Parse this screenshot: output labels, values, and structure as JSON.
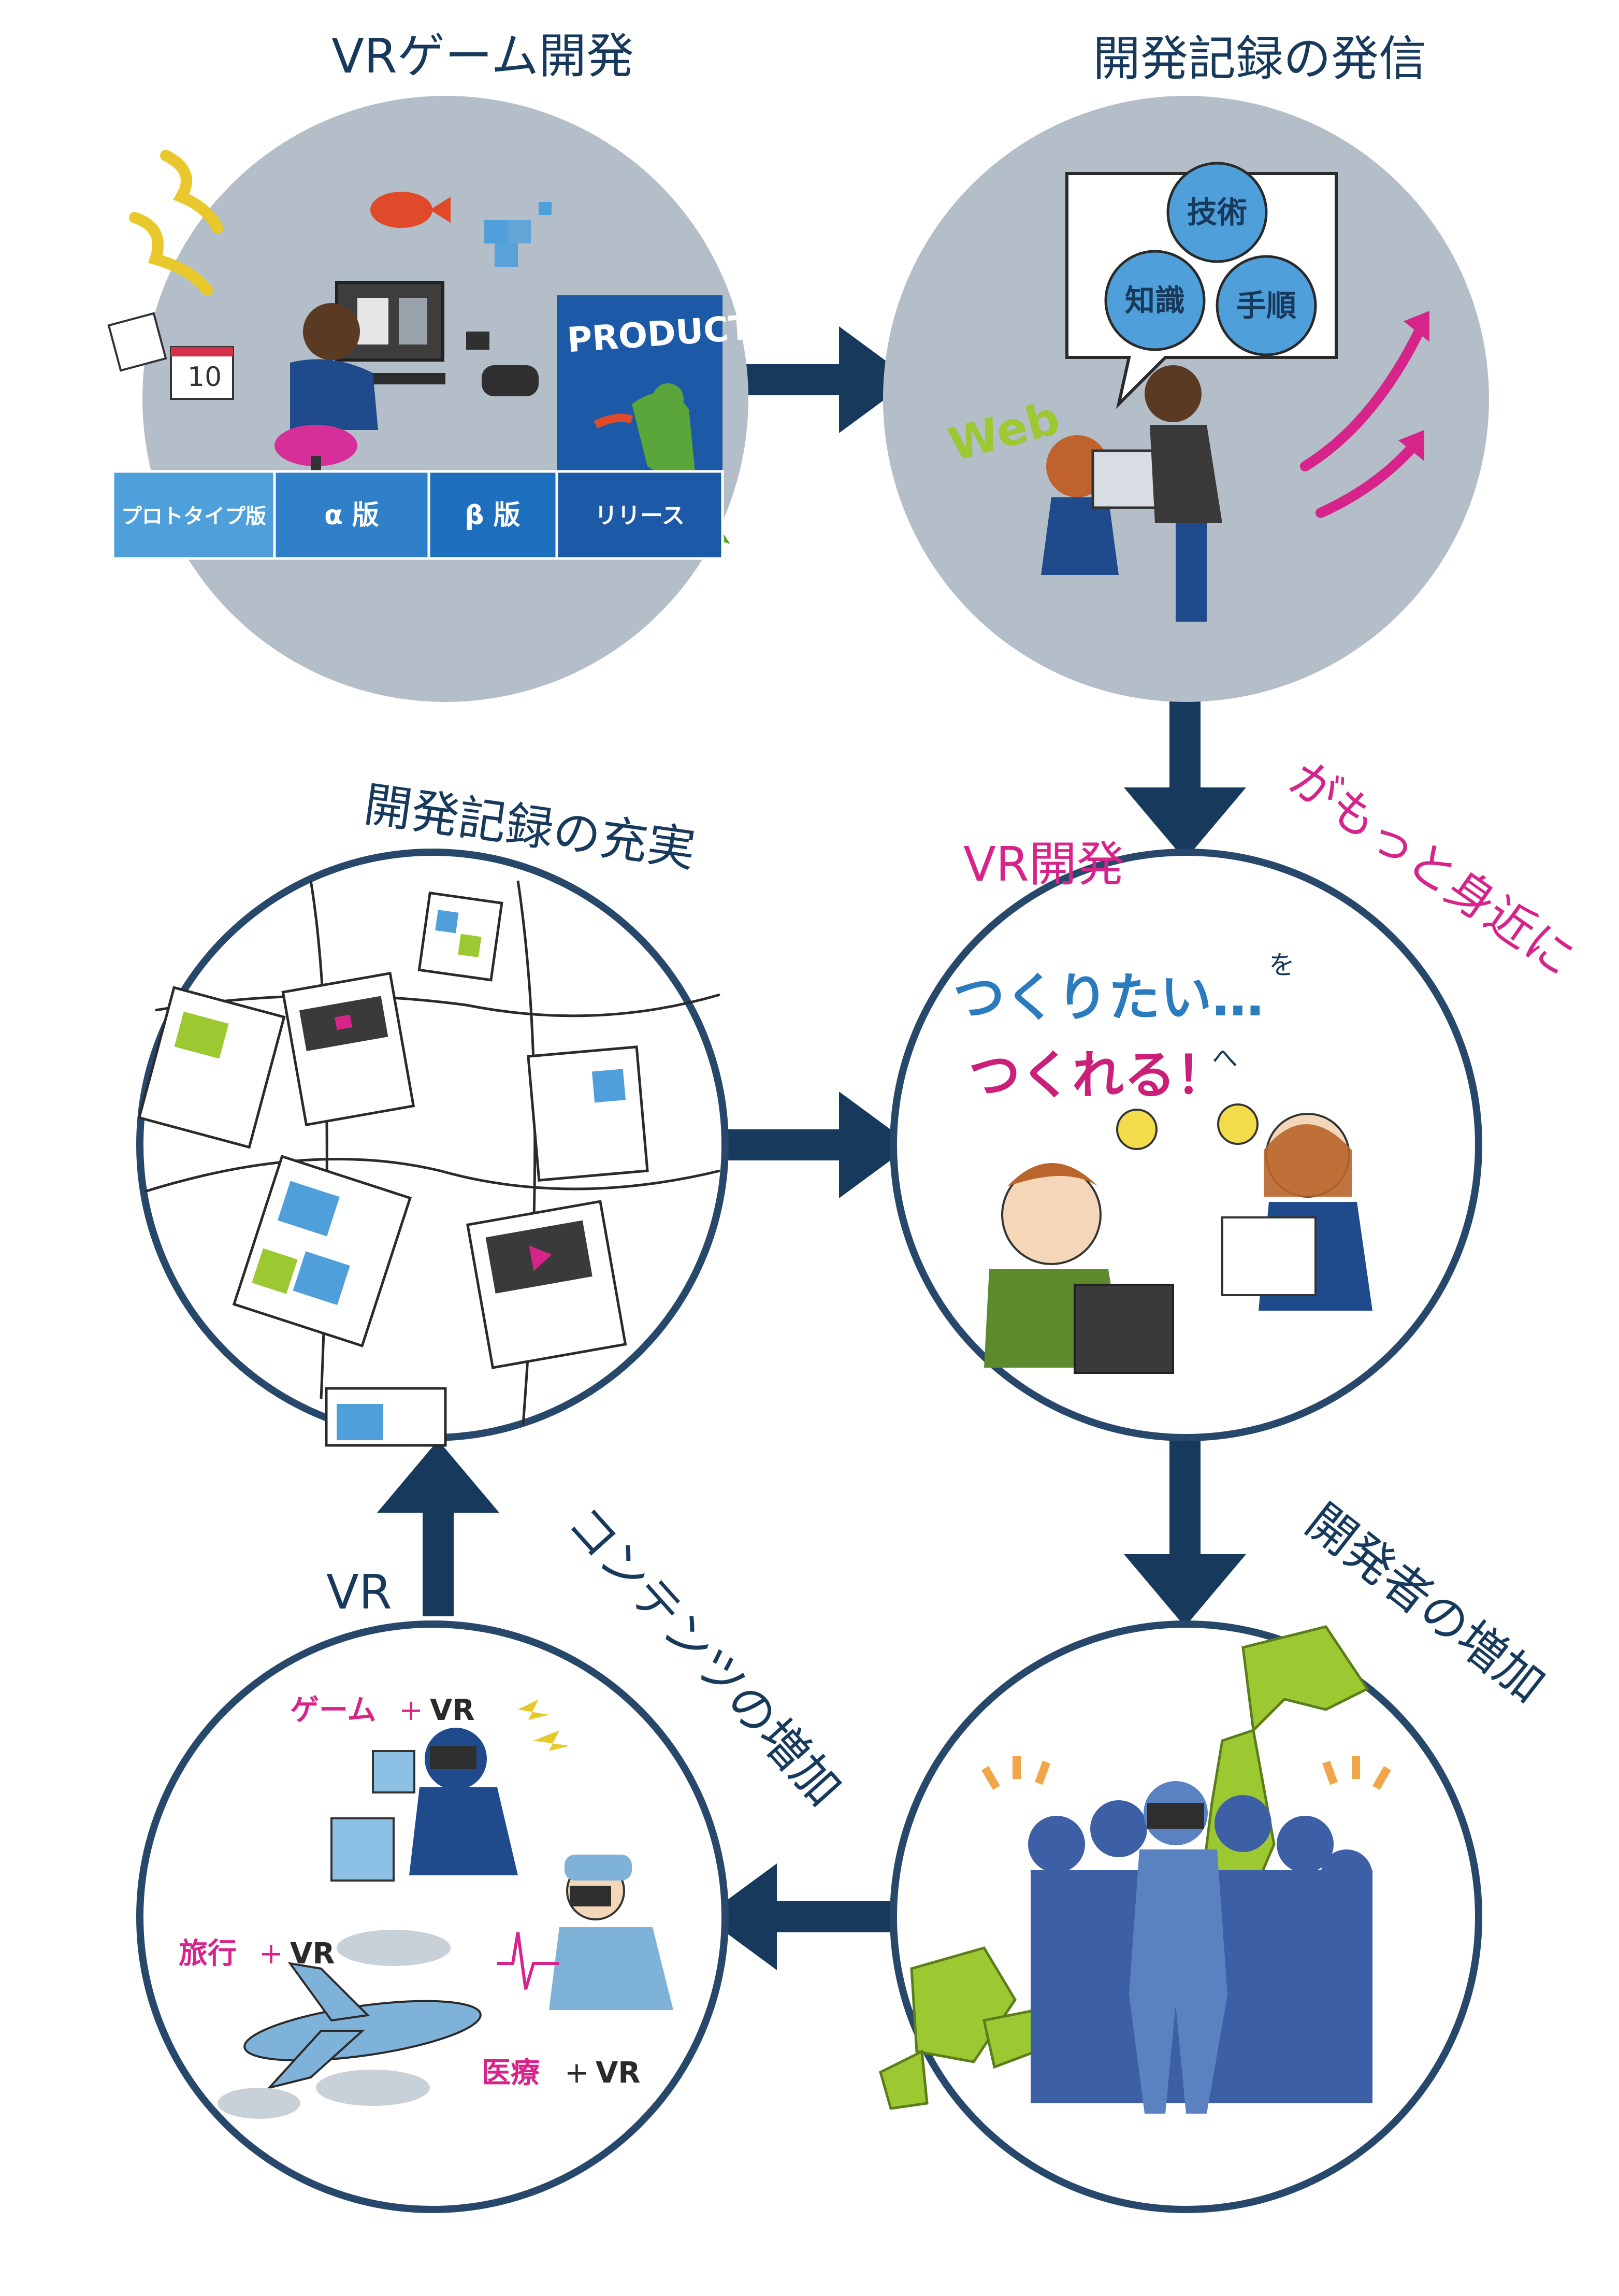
{
  "colors": {
    "navy": "#173a5c",
    "pink": "#d6248a",
    "gray_circle": "#b3bec9",
    "stage_blue": "#1f6fbf",
    "stage_light": "#4f9fda",
    "stage_dark": "#1c5aa8",
    "lime": "#9cc832",
    "crowd": "#3c5fa5"
  },
  "cycle": {
    "vr_game_dev": {
      "title": "VRゲーム開発",
      "stages": [
        "プロトタイプ版",
        "α 版",
        "β 版",
        "リリース"
      ],
      "product_label": "PRODUCT"
    },
    "publish": {
      "title": "開発記録の発信",
      "bubble": [
        "技術",
        "知識",
        "手順"
      ],
      "web_label": "Web"
    },
    "closer": {
      "title_part1": "VR開発",
      "title_part2": "がもっと身近に",
      "line1": "つくりたい…",
      "line1_suffix": "を",
      "line2": "つくれる！",
      "line2_suffix": "へ"
    },
    "developers": {
      "title": "開発者の増加"
    },
    "contents": {
      "title_part1": "VR",
      "title_part2": "コンテンツの増加",
      "tag1_word": "ゲーム",
      "tag1_vr": "VR",
      "tag2_word": "旅行",
      "tag2_vr": "VR",
      "tag3_word": "医療",
      "tag3_vr": "VR",
      "plus": "+"
    },
    "records": {
      "title": "開発記録の充実"
    }
  },
  "icons": {
    "arrows": "flow-arrow-icon",
    "bulb": "lightbulb-icon",
    "play": "play-icon"
  }
}
